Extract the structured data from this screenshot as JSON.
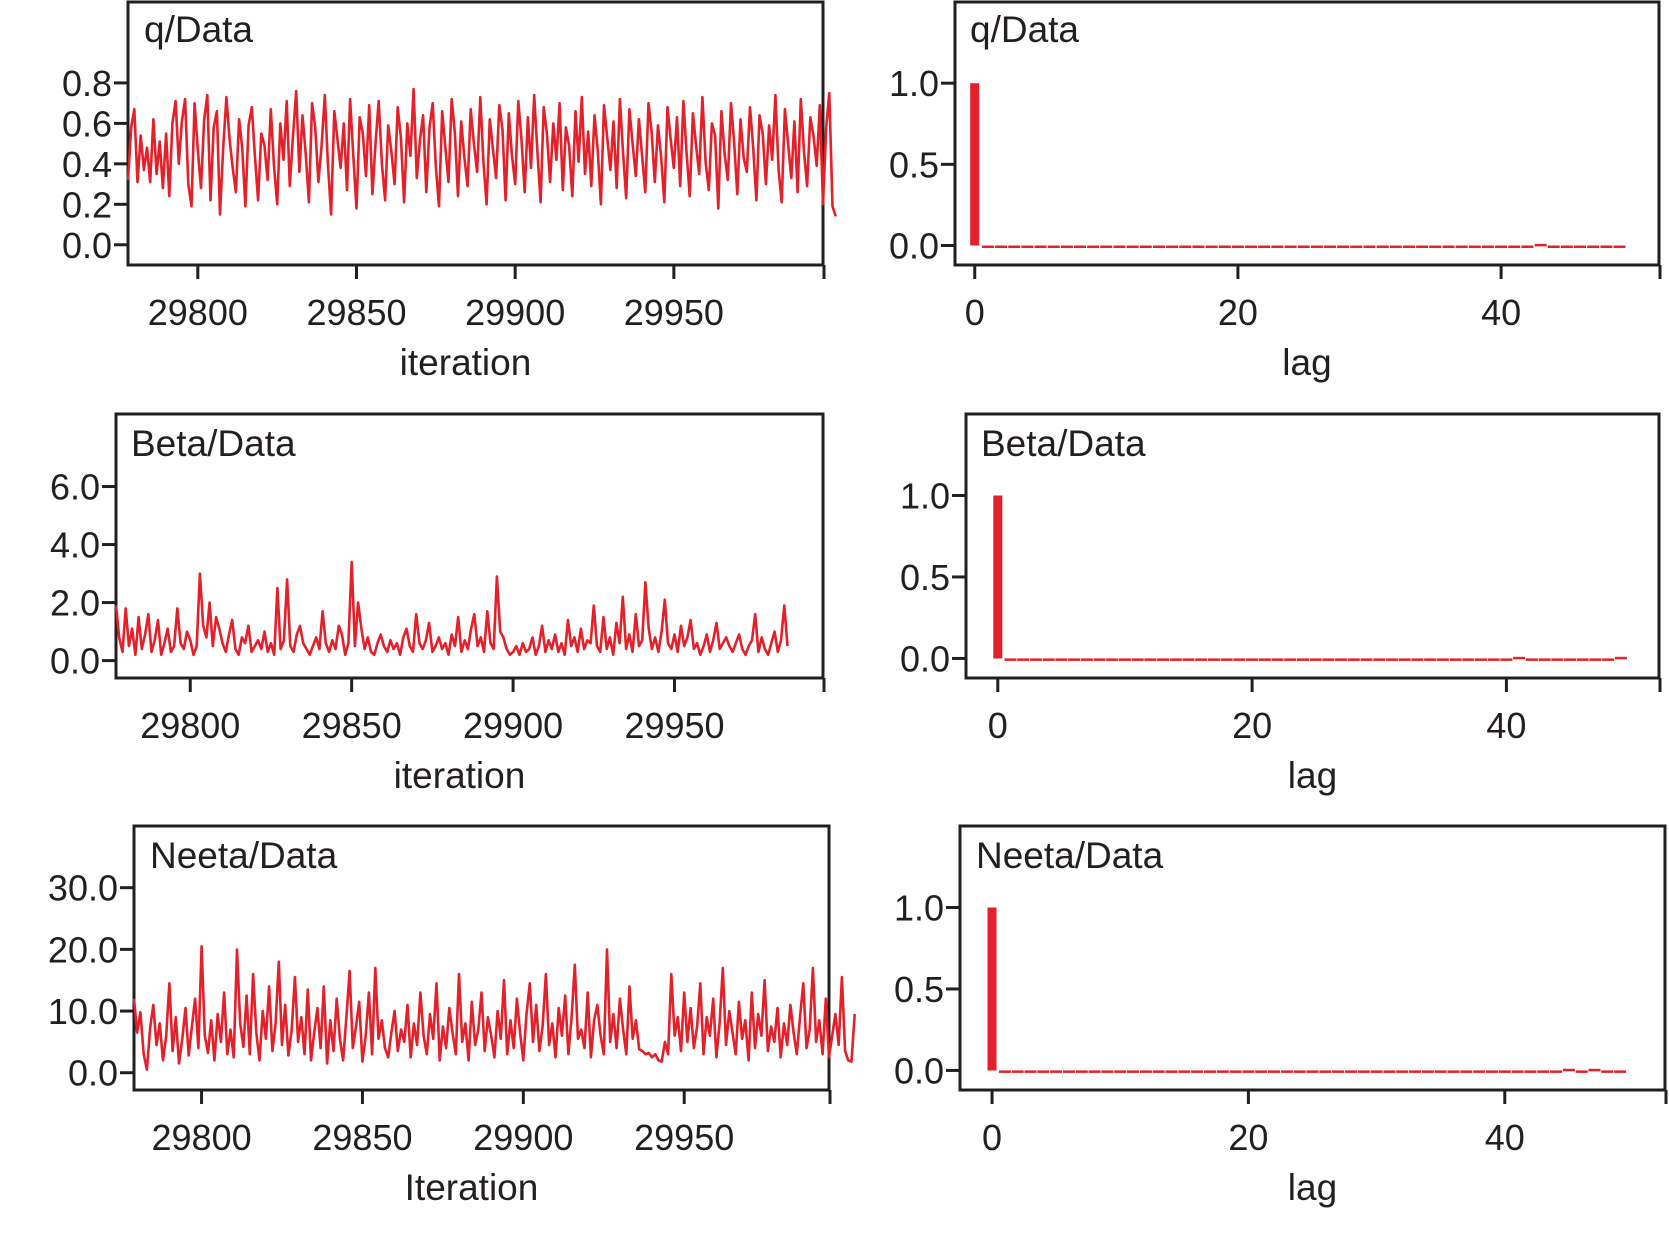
{
  "series_color": "#e4202a",
  "chart_data": [
    {
      "type": "line",
      "title": "q/Data",
      "xlabel": "iteration",
      "ylabel": "",
      "xlim": [
        29778,
        29997
      ],
      "ylim": [
        -0.1,
        1.2
      ],
      "xticks": [
        29800,
        29850,
        29900,
        29950
      ],
      "xtick_labels": [
        "29800",
        "29850",
        "29900",
        "29950"
      ],
      "yticks": [
        0.0,
        0.2,
        0.4,
        0.6,
        0.8
      ],
      "ytick_labels": [
        "0.0",
        "0.2",
        "0.4",
        "0.6",
        "0.8"
      ],
      "x_start": 29778,
      "x_step": 1,
      "values": [
        0.32,
        0.58,
        0.67,
        0.31,
        0.54,
        0.37,
        0.48,
        0.31,
        0.62,
        0.35,
        0.51,
        0.28,
        0.55,
        0.24,
        0.6,
        0.71,
        0.4,
        0.61,
        0.72,
        0.3,
        0.19,
        0.7,
        0.47,
        0.28,
        0.62,
        0.74,
        0.22,
        0.58,
        0.66,
        0.15,
        0.48,
        0.73,
        0.52,
        0.38,
        0.26,
        0.62,
        0.48,
        0.19,
        0.59,
        0.68,
        0.44,
        0.22,
        0.55,
        0.49,
        0.32,
        0.67,
        0.39,
        0.2,
        0.6,
        0.42,
        0.71,
        0.29,
        0.54,
        0.76,
        0.36,
        0.64,
        0.45,
        0.21,
        0.7,
        0.58,
        0.31,
        0.49,
        0.74,
        0.4,
        0.15,
        0.66,
        0.52,
        0.38,
        0.6,
        0.27,
        0.72,
        0.44,
        0.18,
        0.63,
        0.55,
        0.34,
        0.69,
        0.25,
        0.5,
        0.71,
        0.4,
        0.22,
        0.59,
        0.46,
        0.3,
        0.68,
        0.53,
        0.21,
        0.6,
        0.44,
        0.77,
        0.33,
        0.52,
        0.64,
        0.26,
        0.58,
        0.7,
        0.39,
        0.19,
        0.66,
        0.48,
        0.31,
        0.72,
        0.55,
        0.24,
        0.61,
        0.43,
        0.29,
        0.67,
        0.5,
        0.36,
        0.73,
        0.41,
        0.2,
        0.62,
        0.47,
        0.33,
        0.69,
        0.57,
        0.22,
        0.65,
        0.44,
        0.3,
        0.71,
        0.52,
        0.26,
        0.63,
        0.38,
        0.74,
        0.46,
        0.21,
        0.68,
        0.55,
        0.31,
        0.6,
        0.42,
        0.7,
        0.27,
        0.58,
        0.49,
        0.24,
        0.66,
        0.41,
        0.73,
        0.35,
        0.56,
        0.29,
        0.64,
        0.47,
        0.2,
        0.69,
        0.53,
        0.37,
        0.61,
        0.28,
        0.72,
        0.45,
        0.23,
        0.67,
        0.5,
        0.34,
        0.62,
        0.44,
        0.26,
        0.7,
        0.56,
        0.31,
        0.59,
        0.43,
        0.21,
        0.68,
        0.52,
        0.38,
        0.63,
        0.29,
        0.71,
        0.46,
        0.24,
        0.65,
        0.49,
        0.35,
        0.73,
        0.41,
        0.27,
        0.6,
        0.54,
        0.18,
        0.66,
        0.45,
        0.32,
        0.7,
        0.51,
        0.25,
        0.62,
        0.43,
        0.36,
        0.68,
        0.48,
        0.22,
        0.64,
        0.55,
        0.3,
        0.59,
        0.42,
        0.74,
        0.37,
        0.21,
        0.67,
        0.5,
        0.33,
        0.61,
        0.26,
        0.72,
        0.46,
        0.29,
        0.63,
        0.54,
        0.39,
        0.69,
        0.2,
        0.58,
        0.75,
        0.19,
        0.14
      ]
    },
    {
      "type": "bar",
      "title": "q/Data",
      "xlabel": "lag",
      "ylabel": "",
      "xlim": [
        -1.5,
        52
      ],
      "ylim": [
        -0.12,
        1.5
      ],
      "xticks": [
        0,
        20,
        40
      ],
      "xtick_labels": [
        "0",
        "20",
        "40"
      ],
      "yticks": [
        0.0,
        0.5,
        1.0
      ],
      "ytick_labels": [
        "0.0",
        "0.5",
        "1.0"
      ],
      "x": [
        0,
        1,
        2,
        3,
        4,
        5,
        6,
        7,
        8,
        9,
        10,
        11,
        12,
        13,
        14,
        15,
        16,
        17,
        18,
        19,
        20,
        21,
        22,
        23,
        24,
        25,
        26,
        27,
        28,
        29,
        30,
        31,
        32,
        33,
        34,
        35,
        36,
        37,
        38,
        39,
        40,
        41,
        42,
        43,
        44,
        45,
        46,
        47,
        48,
        49
      ],
      "values": [
        1.0,
        0.0,
        -0.01,
        0.0,
        0.0,
        -0.01,
        0.0,
        0.0,
        -0.01,
        0.0,
        -0.01,
        0.0,
        -0.01,
        0.0,
        0.0,
        0.0,
        0.0,
        0.0,
        0.0,
        0.0,
        0.0,
        0.0,
        -0.01,
        0.0,
        0.0,
        0.0,
        0.0,
        0.0,
        0.0,
        0.0,
        0.0,
        0.0,
        -0.01,
        0.0,
        0.0,
        0.0,
        0.0,
        -0.01,
        0.0,
        0.0,
        -0.01,
        0.0,
        -0.01,
        0.01,
        0.0,
        0.0,
        -0.01,
        -0.01,
        -0.01,
        0.0
      ]
    },
    {
      "type": "line",
      "title": "Beta/Data",
      "xlabel": "iteration",
      "ylabel": "",
      "xlim": [
        29777,
        29996
      ],
      "ylim": [
        -0.6,
        8.5
      ],
      "xticks": [
        29800,
        29850,
        29900,
        29950
      ],
      "xtick_labels": [
        "29800",
        "29850",
        "29900",
        "29950"
      ],
      "yticks": [
        0.0,
        2.0,
        4.0,
        6.0
      ],
      "ytick_labels": [
        "0.0",
        "2.0",
        "4.0",
        "6.0"
      ],
      "x_start": 29777,
      "x_step": 1,
      "values": [
        1.9,
        0.8,
        0.3,
        1.8,
        0.5,
        1.1,
        0.2,
        1.5,
        0.4,
        0.9,
        1.6,
        0.3,
        0.7,
        1.4,
        0.2,
        0.6,
        1.1,
        0.3,
        0.5,
        1.8,
        0.6,
        0.4,
        1.0,
        0.7,
        0.2,
        0.5,
        3.0,
        1.2,
        0.8,
        2.0,
        0.5,
        1.5,
        1.1,
        0.6,
        0.3,
        0.9,
        1.4,
        0.4,
        0.2,
        0.8,
        0.6,
        1.2,
        0.3,
        0.5,
        0.7,
        0.4,
        1.0,
        0.3,
        0.6,
        0.2,
        2.5,
        0.4,
        0.7,
        2.8,
        0.5,
        0.3,
        0.9,
        1.2,
        0.6,
        0.4,
        0.2,
        0.5,
        0.8,
        0.4,
        1.7,
        0.6,
        0.3,
        0.7,
        0.4,
        1.2,
        0.9,
        0.2,
        0.6,
        3.4,
        0.5,
        2.0,
        1.1,
        0.4,
        0.8,
        0.3,
        0.2,
        0.6,
        0.9,
        0.5,
        0.3,
        0.7,
        0.4,
        0.6,
        0.2,
        0.8,
        1.1,
        0.5,
        0.3,
        1.6,
        0.6,
        0.4,
        0.7,
        1.3,
        0.3,
        0.5,
        0.8,
        0.4,
        0.6,
        0.2,
        0.9,
        0.5,
        1.5,
        0.3,
        0.7,
        0.4,
        1.1,
        1.6,
        0.5,
        0.8,
        0.3,
        1.7,
        0.6,
        0.4,
        2.9,
        1.0,
        0.8,
        0.4,
        0.2,
        0.3,
        0.5,
        0.2,
        0.6,
        0.3,
        0.4,
        0.8,
        0.2,
        0.5,
        1.2,
        0.3,
        0.7,
        0.4,
        0.9,
        0.3,
        0.6,
        0.2,
        1.4,
        0.5,
        0.8,
        0.3,
        1.1,
        0.4,
        0.7,
        0.6,
        1.9,
        0.5,
        0.3,
        1.5,
        0.4,
        0.8,
        0.2,
        1.3,
        0.6,
        2.2,
        0.4,
        0.9,
        0.3,
        1.6,
        0.5,
        0.7,
        2.7,
        1.1,
        0.4,
        0.8,
        0.3,
        1.0,
        2.1,
        0.6,
        0.4,
        0.9,
        0.3,
        1.2,
        0.5,
        0.8,
        1.4,
        0.4,
        0.6,
        0.2,
        0.5,
        0.9,
        0.3,
        0.7,
        1.3,
        0.4,
        0.6,
        0.8,
        0.5,
        0.3,
        0.6,
        0.9,
        0.4,
        0.2,
        0.5,
        0.7,
        1.6,
        0.3,
        0.8,
        0.4,
        0.2,
        0.6,
        1.0,
        0.3,
        0.7,
        1.9,
        0.5
      ]
    },
    {
      "type": "bar",
      "title": "Beta/Data",
      "xlabel": "lag",
      "ylabel": "",
      "xlim": [
        -2.5,
        52
      ],
      "ylim": [
        -0.12,
        1.5
      ],
      "xticks": [
        0,
        20,
        40
      ],
      "xtick_labels": [
        "0",
        "20",
        "40"
      ],
      "yticks": [
        0.0,
        0.5,
        1.0
      ],
      "ytick_labels": [
        "0.0",
        "0.5",
        "1.0"
      ],
      "x": [
        0,
        1,
        2,
        3,
        4,
        5,
        6,
        7,
        8,
        9,
        10,
        11,
        12,
        13,
        14,
        15,
        16,
        17,
        18,
        19,
        20,
        21,
        22,
        23,
        24,
        25,
        26,
        27,
        28,
        29,
        30,
        31,
        32,
        33,
        34,
        35,
        36,
        37,
        38,
        39,
        40,
        41,
        42,
        43,
        44,
        45,
        46,
        47,
        48,
        49
      ],
      "values": [
        1.0,
        -0.01,
        -0.01,
        -0.01,
        -0.01,
        0.0,
        -0.01,
        0.0,
        0.0,
        0.0,
        0.0,
        -0.01,
        0.0,
        -0.01,
        0.0,
        0.0,
        0.0,
        0.0,
        0.0,
        -0.01,
        0.0,
        0.0,
        -0.01,
        -0.01,
        0.0,
        0.0,
        0.0,
        0.0,
        -0.01,
        -0.01,
        -0.01,
        0.0,
        -0.01,
        -0.01,
        0.0,
        0.0,
        0.0,
        -0.01,
        0.0,
        0.0,
        0.0,
        0.01,
        -0.01,
        0.0,
        0.0,
        0.0,
        0.0,
        0.0,
        0.0,
        0.01
      ]
    },
    {
      "type": "line",
      "title": "Neeta/Data",
      "xlabel": "Iteration",
      "ylabel": "",
      "xlim": [
        29779,
        29995
      ],
      "ylim": [
        -2.8,
        40
      ],
      "xticks": [
        29800,
        29850,
        29900,
        29950
      ],
      "xtick_labels": [
        "29800",
        "29850",
        "29900",
        "29950"
      ],
      "yticks": [
        0.0,
        10.0,
        20.0,
        30.0
      ],
      "ytick_labels": [
        "0.0",
        "10.0",
        "20.0",
        "30.0"
      ],
      "x_start": 29779,
      "x_step": 1,
      "values": [
        12.0,
        6.5,
        9.8,
        3.0,
        0.5,
        7.2,
        11.0,
        4.5,
        8.0,
        2.0,
        6.0,
        14.5,
        3.5,
        9.0,
        1.5,
        5.5,
        10.5,
        2.8,
        7.5,
        12.0,
        4.0,
        20.5,
        6.0,
        3.2,
        8.5,
        2.0,
        9.5,
        5.0,
        13.0,
        3.0,
        7.0,
        2.5,
        20.0,
        8.0,
        4.2,
        12.5,
        3.0,
        16.0,
        6.5,
        2.0,
        10.0,
        5.5,
        14.0,
        3.5,
        8.0,
        18.0,
        4.5,
        11.0,
        2.8,
        7.0,
        15.5,
        5.0,
        9.0,
        3.0,
        13.5,
        2.0,
        6.5,
        10.5,
        4.0,
        14.0,
        1.5,
        8.5,
        3.5,
        12.0,
        5.5,
        2.0,
        9.0,
        16.5,
        4.0,
        7.5,
        11.5,
        1.8,
        6.0,
        13.0,
        3.0,
        17.0,
        5.5,
        8.5,
        4.0,
        2.5,
        6.5,
        10.0,
        3.5,
        7.0,
        5.0,
        11.0,
        2.5,
        8.0,
        4.5,
        13.0,
        6.0,
        3.0,
        9.5,
        5.5,
        14.5,
        2.0,
        7.5,
        4.0,
        10.5,
        6.5,
        3.0,
        16.0,
        5.0,
        8.0,
        2.0,
        11.5,
        4.5,
        7.0,
        13.0,
        3.5,
        9.0,
        6.0,
        2.5,
        10.0,
        5.5,
        15.0,
        3.0,
        8.5,
        4.0,
        12.0,
        6.5,
        2.0,
        9.5,
        14.5,
        5.0,
        11.0,
        3.5,
        7.5,
        16.0,
        4.5,
        8.0,
        2.5,
        10.5,
        6.0,
        12.5,
        3.0,
        9.0,
        17.5,
        5.5,
        7.0,
        4.0,
        13.0,
        2.5,
        8.5,
        11.0,
        6.0,
        3.0,
        20.0,
        5.0,
        9.5,
        4.0,
        12.0,
        7.0,
        3.0,
        14.0,
        5.5,
        8.5,
        3.8,
        3.5,
        3.0,
        3.2,
        2.5,
        3.0,
        2.0,
        1.8,
        5.0,
        3.0,
        16.0,
        6.0,
        9.0,
        3.5,
        13.0,
        5.0,
        10.5,
        4.0,
        7.5,
        14.5,
        3.0,
        9.0,
        6.0,
        12.0,
        2.5,
        8.0,
        17.0,
        4.5,
        10.0,
        6.5,
        3.0,
        11.5,
        5.5,
        8.5,
        2.0,
        13.0,
        4.0,
        9.5,
        6.0,
        15.0,
        3.5,
        7.5,
        5.0,
        10.5,
        2.5,
        8.0,
        4.5,
        11.0,
        6.5,
        3.0,
        9.0,
        14.5,
        4.0,
        7.0,
        17.0,
        5.0,
        8.5,
        3.0,
        12.0,
        2.5,
        6.0,
        9.5,
        4.5,
        15.5,
        3.5,
        2.0,
        1.8,
        9.5
      ]
    },
    {
      "type": "bar",
      "title": "Neeta/Data",
      "xlabel": "lag",
      "ylabel": "",
      "xlim": [
        -2.5,
        52.5
      ],
      "ylim": [
        -0.12,
        1.5
      ],
      "xticks": [
        0,
        20,
        40
      ],
      "xtick_labels": [
        "0",
        "20",
        "40"
      ],
      "yticks": [
        0.0,
        0.5,
        1.0
      ],
      "ytick_labels": [
        "0.0",
        "0.5",
        "1.0"
      ],
      "x": [
        0,
        1,
        2,
        3,
        4,
        5,
        6,
        7,
        8,
        9,
        10,
        11,
        12,
        13,
        14,
        15,
        16,
        17,
        18,
        19,
        20,
        21,
        22,
        23,
        24,
        25,
        26,
        27,
        28,
        29,
        30,
        31,
        32,
        33,
        34,
        35,
        36,
        37,
        38,
        39,
        40,
        41,
        42,
        43,
        44,
        45,
        46,
        47,
        48,
        49
      ],
      "values": [
        1.0,
        -0.01,
        -0.01,
        -0.01,
        -0.01,
        0.0,
        -0.01,
        0.0,
        0.0,
        0.0,
        -0.01,
        -0.01,
        0.0,
        -0.01,
        0.0,
        0.0,
        -0.01,
        0.0,
        0.0,
        0.0,
        0.0,
        0.0,
        0.0,
        0.0,
        0.0,
        -0.01,
        0.0,
        0.0,
        -0.01,
        -0.01,
        -0.01,
        -0.01,
        -0.01,
        0.0,
        -0.01,
        0.0,
        -0.01,
        0.0,
        0.0,
        0.0,
        0.0,
        0.0,
        0.0,
        -0.01,
        0.0,
        0.01,
        0.0,
        0.01,
        0.0,
        0.0
      ]
    }
  ]
}
